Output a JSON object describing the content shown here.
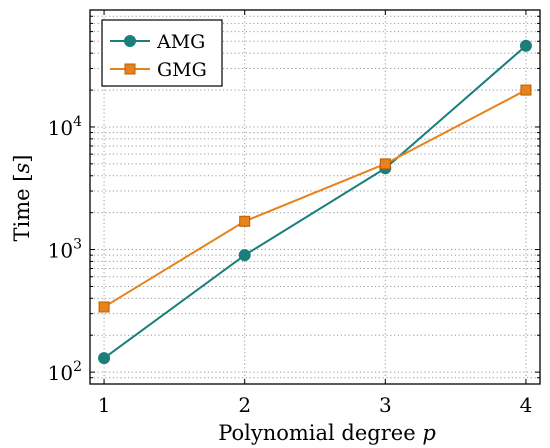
{
  "chart_data": {
    "type": "line",
    "title": "",
    "xlabel": "Polynomial degree p",
    "ylabel": "Time [s]",
    "x": [
      1,
      2,
      3,
      4
    ],
    "xticks": [
      "1",
      "2",
      "3",
      "4"
    ],
    "xlim": [
      0.9,
      4.1
    ],
    "yscale": "log",
    "ylim": [
      80,
      90000
    ],
    "yticks": [
      {
        "value": 100,
        "base": "10",
        "exp": "2"
      },
      {
        "value": 1000,
        "base": "10",
        "exp": "3"
      },
      {
        "value": 10000,
        "base": "10",
        "exp": "4"
      }
    ],
    "grid": true,
    "legend_position": "top-left",
    "series": [
      {
        "name": "AMG",
        "marker": "circle",
        "color": "#1a7f7a",
        "values": [
          130,
          900,
          4600,
          46000
        ]
      },
      {
        "name": "GMG",
        "marker": "square",
        "color": "#e8821a",
        "values": [
          340,
          1700,
          5000,
          20000
        ]
      }
    ]
  }
}
